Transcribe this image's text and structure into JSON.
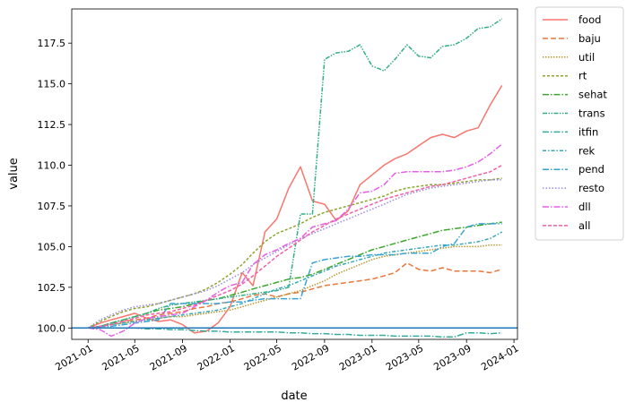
{
  "chart_data": {
    "type": "line",
    "xlabel": "date",
    "ylabel": "value",
    "x": [
      "2021-01",
      "2021-02",
      "2021-03",
      "2021-04",
      "2021-05",
      "2021-06",
      "2021-07",
      "2021-08",
      "2021-09",
      "2021-10",
      "2021-11",
      "2021-12",
      "2022-01",
      "2022-02",
      "2022-03",
      "2022-04",
      "2022-05",
      "2022-06",
      "2022-07",
      "2022-08",
      "2022-09",
      "2022-10",
      "2022-11",
      "2022-12",
      "2023-01",
      "2023-02",
      "2023-03",
      "2023-04",
      "2023-05",
      "2023-06",
      "2023-07",
      "2023-08",
      "2023-09",
      "2023-10",
      "2023-11",
      "2023-12"
    ],
    "xticks": [
      "2021-01",
      "2021-05",
      "2021-09",
      "2022-01",
      "2022-05",
      "2022-09",
      "2023-01",
      "2023-05",
      "2023-09",
      "2024-01"
    ],
    "yticks": [
      "100.0",
      "102.5",
      "105.0",
      "107.5",
      "110.0",
      "112.5",
      "115.0",
      "117.5"
    ],
    "ylim": [
      99.3,
      119.6
    ],
    "xlim": [
      "2020-11-20",
      "2024-01-10"
    ],
    "reference_line": 100.0,
    "legend_position": "outside-right",
    "series": [
      {
        "name": "food",
        "color": "#f8766d",
        "dash": "",
        "values": [
          100,
          100.3,
          100.5,
          100.7,
          100.9,
          100.6,
          100.4,
          100.5,
          100.2,
          99.7,
          99.8,
          100.3,
          101.3,
          103.4,
          102.6,
          105.9,
          106.7,
          108.6,
          109.9,
          107.8,
          107.6,
          106.6,
          107.2,
          108.8,
          109.4,
          110.0,
          110.4,
          110.7,
          111.2,
          111.7,
          111.9,
          111.7,
          112.1,
          112.3,
          113.7,
          114.9
        ]
      },
      {
        "name": "baju",
        "color": "#e8783d",
        "dash": "6,3",
        "values": [
          100,
          100.1,
          100.3,
          100.4,
          100.5,
          100.6,
          100.8,
          100.9,
          101.0,
          101.2,
          101.3,
          101.5,
          101.6,
          101.8,
          102.0,
          102.1,
          101.9,
          102.1,
          102.2,
          102.4,
          102.6,
          102.7,
          102.8,
          102.9,
          103.0,
          103.2,
          103.4,
          104.0,
          103.6,
          103.5,
          103.7,
          103.5,
          103.5,
          103.5,
          103.4,
          103.6
        ]
      },
      {
        "name": "util",
        "color": "#b9962e",
        "dash": "1.5,1.5",
        "values": [
          100,
          100.1,
          100.2,
          100.3,
          100.4,
          100.5,
          100.6,
          100.7,
          100.7,
          100.8,
          100.9,
          101.0,
          101.1,
          101.3,
          101.5,
          101.7,
          101.9,
          102.1,
          102.3,
          102.6,
          102.9,
          103.3,
          103.6,
          103.9,
          104.2,
          104.4,
          104.5,
          104.6,
          104.7,
          104.8,
          104.9,
          105.0,
          105.0,
          105.0,
          105.1,
          105.1
        ]
      },
      {
        "name": "rt",
        "color": "#8ba52f",
        "dash": "3,2",
        "values": [
          100,
          100.4,
          100.7,
          101.0,
          101.2,
          101.3,
          101.5,
          101.7,
          101.9,
          102.1,
          102.4,
          102.8,
          103.3,
          103.9,
          104.6,
          105.3,
          105.8,
          106.1,
          106.4,
          106.8,
          107.1,
          107.3,
          107.5,
          107.7,
          107.9,
          108.1,
          108.4,
          108.6,
          108.7,
          108.8,
          108.8,
          108.9,
          109.0,
          109.1,
          109.1,
          109.2
        ]
      },
      {
        "name": "sehat",
        "color": "#3ca72c",
        "dash": "7,2,1.5,2",
        "values": [
          100,
          100.1,
          100.3,
          100.5,
          100.7,
          100.9,
          101.1,
          101.2,
          101.3,
          101.5,
          101.7,
          101.8,
          102.0,
          102.2,
          102.4,
          102.6,
          102.8,
          103.0,
          103.1,
          103.3,
          103.6,
          103.9,
          104.2,
          104.5,
          104.8,
          105.0,
          105.2,
          105.4,
          105.6,
          105.8,
          106.0,
          106.1,
          106.2,
          106.3,
          106.4,
          106.5
        ]
      },
      {
        "name": "trans",
        "color": "#33ad87",
        "dash": "5,1.5,1.5,1.5,1.5,1.5",
        "values": [
          100,
          100.1,
          100.3,
          100.5,
          100.7,
          100.9,
          101.2,
          101.4,
          101.5,
          101.6,
          101.7,
          101.8,
          101.9,
          102.0,
          102.1,
          102.2,
          102.3,
          102.5,
          107.0,
          107.0,
          116.5,
          116.9,
          117.0,
          117.4,
          116.1,
          115.8,
          116.5,
          117.4,
          116.7,
          116.6,
          117.3,
          117.4,
          117.8,
          118.4,
          118.5,
          119.0
        ]
      },
      {
        "name": "itfin",
        "color": "#34ab9b",
        "dash": "7,2,1.5,2",
        "values": [
          100,
          100,
          100,
          100,
          100,
          99.95,
          99.95,
          99.9,
          99.9,
          99.85,
          99.8,
          99.8,
          99.75,
          99.75,
          99.75,
          99.75,
          99.75,
          99.7,
          99.7,
          99.65,
          99.65,
          99.6,
          99.6,
          99.55,
          99.55,
          99.55,
          99.5,
          99.5,
          99.5,
          99.5,
          99.45,
          99.45,
          99.7,
          99.7,
          99.65,
          99.7
        ]
      },
      {
        "name": "rek",
        "color": "#36a8b5",
        "dash": "4,2,1.5,2",
        "values": [
          100,
          100.1,
          100.2,
          100.3,
          100.4,
          100.5,
          100.6,
          100.7,
          100.8,
          100.9,
          101.0,
          101.1,
          101.3,
          101.5,
          101.8,
          102.1,
          102.4,
          102.6,
          102.9,
          103.2,
          103.5,
          103.8,
          104.0,
          104.2,
          104.4,
          104.6,
          104.7,
          104.8,
          104.9,
          105.0,
          105.1,
          105.1,
          105.2,
          105.3,
          105.5,
          105.9
        ]
      },
      {
        "name": "pend",
        "color": "#3aa3d6",
        "dash": "7,2,1.5,2",
        "values": [
          100,
          100.1,
          100.1,
          100.2,
          100.3,
          100.4,
          100.5,
          101.5,
          101.5,
          101.5,
          101.5,
          101.5,
          101.6,
          101.6,
          101.7,
          101.8,
          101.8,
          101.8,
          101.8,
          104.0,
          104.2,
          104.3,
          104.4,
          104.4,
          104.5,
          104.5,
          104.5,
          104.6,
          104.6,
          104.6,
          105.0,
          105.2,
          106.2,
          106.4,
          106.4,
          106.4
        ]
      },
      {
        "name": "resto",
        "color": "#9a8ae6",
        "dash": "1.5,2",
        "values": [
          100,
          100.5,
          100.8,
          101.1,
          101.3,
          101.4,
          101.5,
          101.7,
          101.9,
          102.1,
          102.3,
          102.6,
          103.0,
          103.4,
          103.9,
          104.3,
          104.7,
          105.1,
          105.5,
          105.8,
          106.1,
          106.4,
          106.7,
          107.0,
          107.3,
          107.6,
          107.9,
          108.2,
          108.4,
          108.6,
          108.7,
          108.8,
          108.9,
          109.0,
          109.1,
          109.1
        ]
      },
      {
        "name": "dll",
        "color": "#e45ee8",
        "dash": "7,2,1.5,2",
        "values": [
          100,
          99.9,
          99.5,
          99.8,
          100.3,
          100.6,
          100.7,
          100.8,
          100.9,
          101.3,
          101.7,
          102.2,
          102.6,
          102.8,
          103.9,
          104.5,
          104.8,
          105.2,
          105.5,
          106.2,
          106.4,
          106.6,
          107.3,
          108.3,
          108.4,
          108.8,
          109.5,
          109.6,
          109.6,
          109.6,
          109.6,
          109.7,
          109.9,
          110.2,
          110.7,
          111.3
        ]
      },
      {
        "name": "all",
        "color": "#f25fa9",
        "dash": "4,2",
        "values": [
          100,
          100.1,
          100.2,
          100.4,
          100.6,
          100.8,
          100.9,
          101.0,
          101.2,
          101.4,
          101.7,
          102.0,
          102.3,
          102.7,
          103.2,
          103.8,
          104.4,
          104.9,
          105.4,
          105.9,
          106.3,
          106.7,
          107.0,
          107.3,
          107.6,
          107.9,
          108.1,
          108.3,
          108.5,
          108.7,
          108.8,
          109.0,
          109.2,
          109.4,
          109.6,
          110.0
        ]
      }
    ]
  }
}
